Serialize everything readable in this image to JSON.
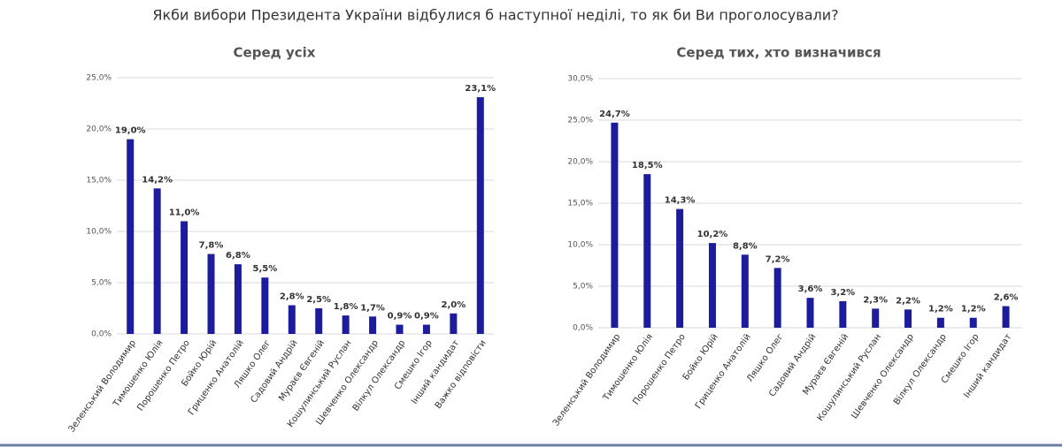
{
  "title": "Якби вибори Президента України відбулися б наступної неділі, то як би Ви проголосували?",
  "chart_data": [
    {
      "type": "bar",
      "title": "Серед усіх",
      "color": "#1c1c9c",
      "grid": true,
      "categories": [
        "Зеленський Володимир",
        "Тимошенко Юлія",
        "Порошенко Петро",
        "Бойко Юрій",
        "Гриценко Анатолій",
        "Ляшко Олег",
        "Садовий Андрій",
        "Мураєв Євгеній",
        "Кошулинський Руслан",
        "Шевченко Олександр",
        "Вілкул Олександр",
        "Смешко Ігор",
        "Інший кандидат",
        "Важко відповісти"
      ],
      "values": [
        19.0,
        14.2,
        11.0,
        7.8,
        6.8,
        5.5,
        2.8,
        2.5,
        1.8,
        1.7,
        0.9,
        0.9,
        2.0,
        23.1
      ],
      "value_labels": [
        "19,0%",
        "14,2%",
        "11,0%",
        "7,8%",
        "6,8%",
        "5,5%",
        "2,8%",
        "2,5%",
        "1,8%",
        "1,7%",
        "0,9%",
        "0,9%",
        "2,0%",
        "23,1%"
      ],
      "ylim": [
        0,
        25
      ],
      "yticks": [
        {
          "value": 0,
          "label": "0,0%"
        },
        {
          "value": 5,
          "label": "5,0%"
        },
        {
          "value": 10,
          "label": "10,0%"
        },
        {
          "value": 15,
          "label": "15,0%"
        },
        {
          "value": 20,
          "label": "20,0%"
        },
        {
          "value": 25,
          "label": "25,0%"
        }
      ]
    },
    {
      "type": "bar",
      "title": "Серед тих, хто визначився",
      "color": "#1c1c9c",
      "grid": true,
      "categories": [
        "Зеленський Володимир",
        "Тимошенко Юлія",
        "Порошенко Петро",
        "Бойко Юрій",
        "Гриценко Анатолій",
        "Ляшко Олег",
        "Садовий Андрій",
        "Мураєв Євгеній",
        "Кошулинський Руслан",
        "Шевченко Олександр",
        "Вілкул Олександр",
        "Смешко Ігор",
        "Інший кандидат"
      ],
      "values": [
        24.7,
        18.5,
        14.3,
        10.2,
        8.8,
        7.2,
        3.6,
        3.2,
        2.3,
        2.2,
        1.2,
        1.2,
        2.6
      ],
      "value_labels": [
        "24,7%",
        "18,5%",
        "14,3%",
        "10,2%",
        "8,8%",
        "7,2%",
        "3,6%",
        "3,2%",
        "2,3%",
        "2,2%",
        "1,2%",
        "1,2%",
        "2,6%"
      ],
      "ylim": [
        0,
        30
      ],
      "yticks": [
        {
          "value": 0,
          "label": "0,0%"
        },
        {
          "value": 5,
          "label": "5,0%"
        },
        {
          "value": 10,
          "label": "10,0%"
        },
        {
          "value": 15,
          "label": "15,0%"
        },
        {
          "value": 20,
          "label": "20,0%"
        },
        {
          "value": 25,
          "label": "25,0%"
        },
        {
          "value": 30,
          "label": "30,0%"
        }
      ]
    }
  ]
}
